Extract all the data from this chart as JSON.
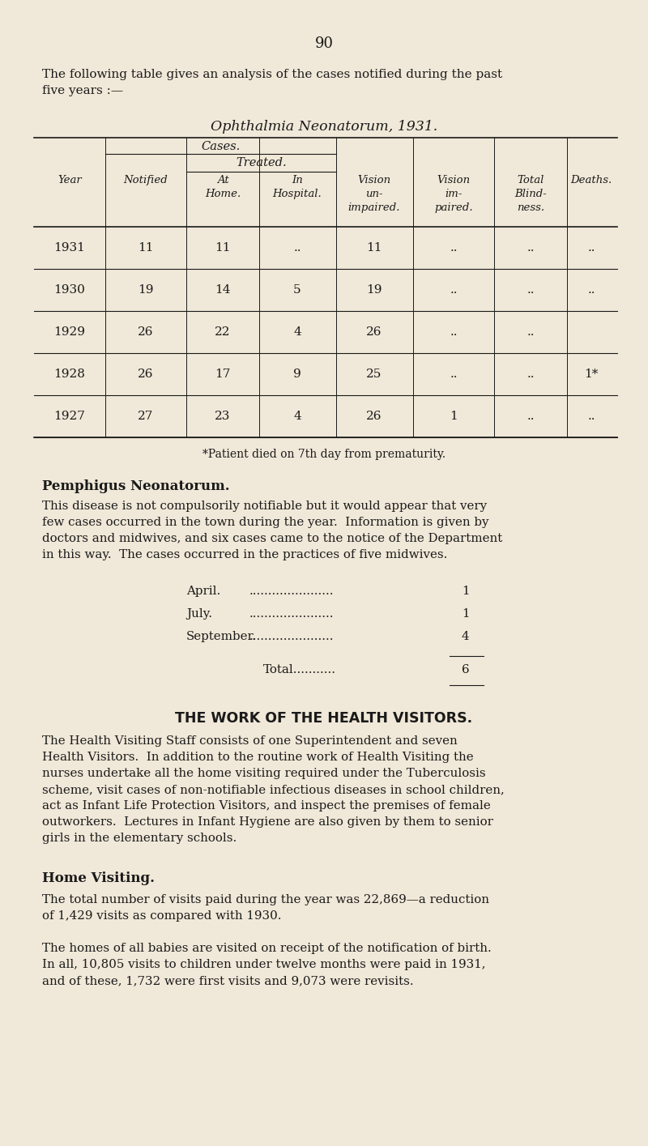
{
  "bg_color": "#f0e8d8",
  "text_color": "#1a1a1a",
  "page_number": "90",
  "intro_text": "The following table gives an analysis of the cases notified during the past\nfive years :—",
  "table_title": "Ophthalmia Neonatorum, 1931.",
  "table_data": [
    [
      "1931",
      "11",
      "11",
      "..",
      "11",
      "..",
      "..",
      ".."
    ],
    [
      "1930",
      "19",
      "14",
      "5",
      "19",
      "..",
      "..",
      ".."
    ],
    [
      "1929",
      "26",
      "22",
      "4",
      "26",
      "..",
      "..",
      ""
    ],
    [
      "1928",
      "26",
      "17",
      "9",
      "25",
      "..",
      "..",
      "1*"
    ],
    [
      "1927",
      "27",
      "23",
      "4",
      "26",
      "1",
      "..",
      ".."
    ]
  ],
  "footnote": "*Patient died on 7th day from prematurity.",
  "section2_title": "Pemphigus Neonatorum.",
  "section2_para": "This disease is not compulsorily notifiable but it would appear that very\nfew cases occurred in the town during the year.  Information is given by\ndoctors and midwives, and six cases came to the notice of the Department\nin this way.  The cases occurred in the practices of five midwives.",
  "monthly_data": [
    [
      "April",
      "1"
    ],
    [
      "July",
      "1"
    ],
    [
      "September",
      "4"
    ]
  ],
  "total_label": "Total",
  "total_value": "6",
  "section3_title": "THE WORK OF THE HEALTH VISITORS.",
  "section3_para1": "The Health Visiting Staff consists of one Superintendent and seven\nHealth Visitors.  In addition to the routine work of Health Visiting the\nnurses undertake all the home visiting required under the Tuberculosis\nscheme, visit cases of non-notifiable infectious diseases in school children,\nact as Infant Life Protection Visitors, and inspect the premises of female\noutworkers.  Lectures in Infant Hygiene are also given by them to senior\ngirls in the elementary schools.",
  "section3_sub": "Home Visiting.",
  "section3_para2": "The total number of visits paid during the year was 22,869—a reduction\nof 1,429 visits as compared with 1930.",
  "section3_para3": "The homes of all babies are visited on receipt of the notification of birth.\nIn all, 10,805 visits to children under twelve months were paid in 1931,\nand of these, 1,732 were first visits and 9,073 were revisits."
}
